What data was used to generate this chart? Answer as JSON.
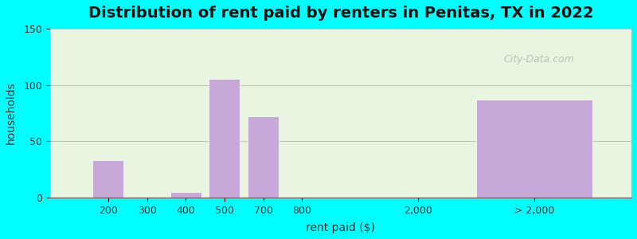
{
  "title": "Distribution of rent paid by renters in Penitas, TX in 2022",
  "xlabel": "rent paid ($)",
  "ylabel": "households",
  "ylim": [
    0,
    150
  ],
  "yticks": [
    0,
    50,
    100,
    150
  ],
  "bar_color": "#c8a8d8",
  "background_outer": "#00FFFF",
  "background_inner_top": "#e8f5e0",
  "background_inner_bottom": "#f0faf0",
  "categories": [
    "200",
    "300",
    "400",
    "500",
    "700",
    "800",
    "2,000",
    "> 2,000"
  ],
  "values": [
    33,
    0,
    5,
    105,
    72,
    0,
    0,
    87
  ],
  "bar_positions": [
    1,
    2,
    3,
    4,
    5,
    6,
    9,
    12
  ],
  "bar_widths": [
    0.8,
    0.8,
    0.8,
    0.8,
    0.8,
    0.8,
    0.8,
    3.0
  ],
  "tick_positions": [
    1,
    2,
    3,
    4,
    5,
    6,
    9,
    12
  ],
  "tick_labels": [
    "200",
    "300",
    "400",
    "500",
    "700",
    "800",
    "2,000",
    "> 2,000"
  ],
  "grid_color": "#c0c0c0",
  "title_fontsize": 14,
  "axis_label_fontsize": 10,
  "tick_fontsize": 9
}
